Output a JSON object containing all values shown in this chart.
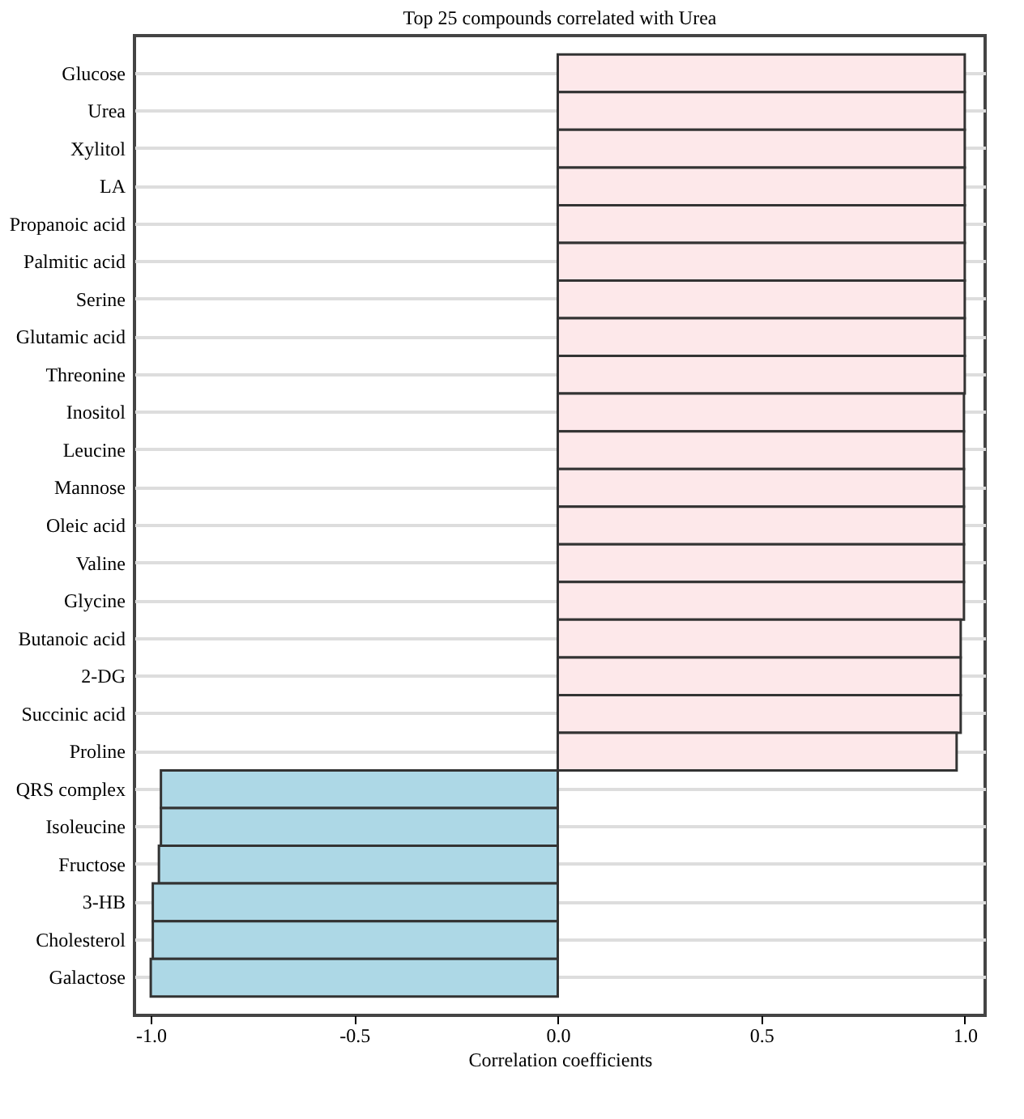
{
  "chart_data": {
    "type": "bar",
    "orientation": "horizontal",
    "title": "Top 25 compounds correlated with Urea",
    "xlabel": "Correlation coefficients",
    "categories": [
      "Glucose",
      "Urea",
      "Xylitol",
      "LA",
      "Propanoic acid",
      "Palmitic acid",
      "Serine",
      "Glutamic acid",
      "Threonine",
      "Inositol",
      "Leucine",
      "Mannose",
      "Oleic acid",
      "Valine",
      "Glycine",
      "Butanoic acid",
      "2-DG",
      "Succinic acid",
      "Proline",
      "QRS complex",
      "Isoleucine",
      "Fructose",
      "3-HB",
      "Cholesterol",
      "Galactose"
    ],
    "values": [
      1.0,
      1.0,
      1.0,
      1.0,
      1.0,
      1.0,
      1.0,
      1.0,
      1.0,
      0.998,
      0.998,
      0.998,
      0.998,
      0.998,
      0.998,
      0.99,
      0.99,
      0.99,
      0.98,
      -0.975,
      -0.975,
      -0.98,
      -0.995,
      -0.995,
      -1.0
    ],
    "colors": [
      "#fde8ea",
      "#fde8ea",
      "#fde8ea",
      "#fde8ea",
      "#fde8ea",
      "#fde8ea",
      "#fde8ea",
      "#fde8ea",
      "#fde8ea",
      "#fde8ea",
      "#fde8ea",
      "#fde8ea",
      "#fde8ea",
      "#fde8ea",
      "#fde8ea",
      "#fde8ea",
      "#fde8ea",
      "#fde8ea",
      "#fde8ea",
      "#add8e6",
      "#add8e6",
      "#add8e6",
      "#add8e6",
      "#add8e6",
      "#add8e6"
    ],
    "xlim": [
      -1.04,
      1.05
    ],
    "xticks": [
      {
        "value": -1,
        "label": "-1.0"
      },
      {
        "value": -0.5,
        "label": "-0.5"
      },
      {
        "value": 0,
        "label": "0.0"
      },
      {
        "value": 0.5,
        "label": "0.5"
      },
      {
        "value": 1,
        "label": "1.0"
      }
    ],
    "grid": "y"
  }
}
